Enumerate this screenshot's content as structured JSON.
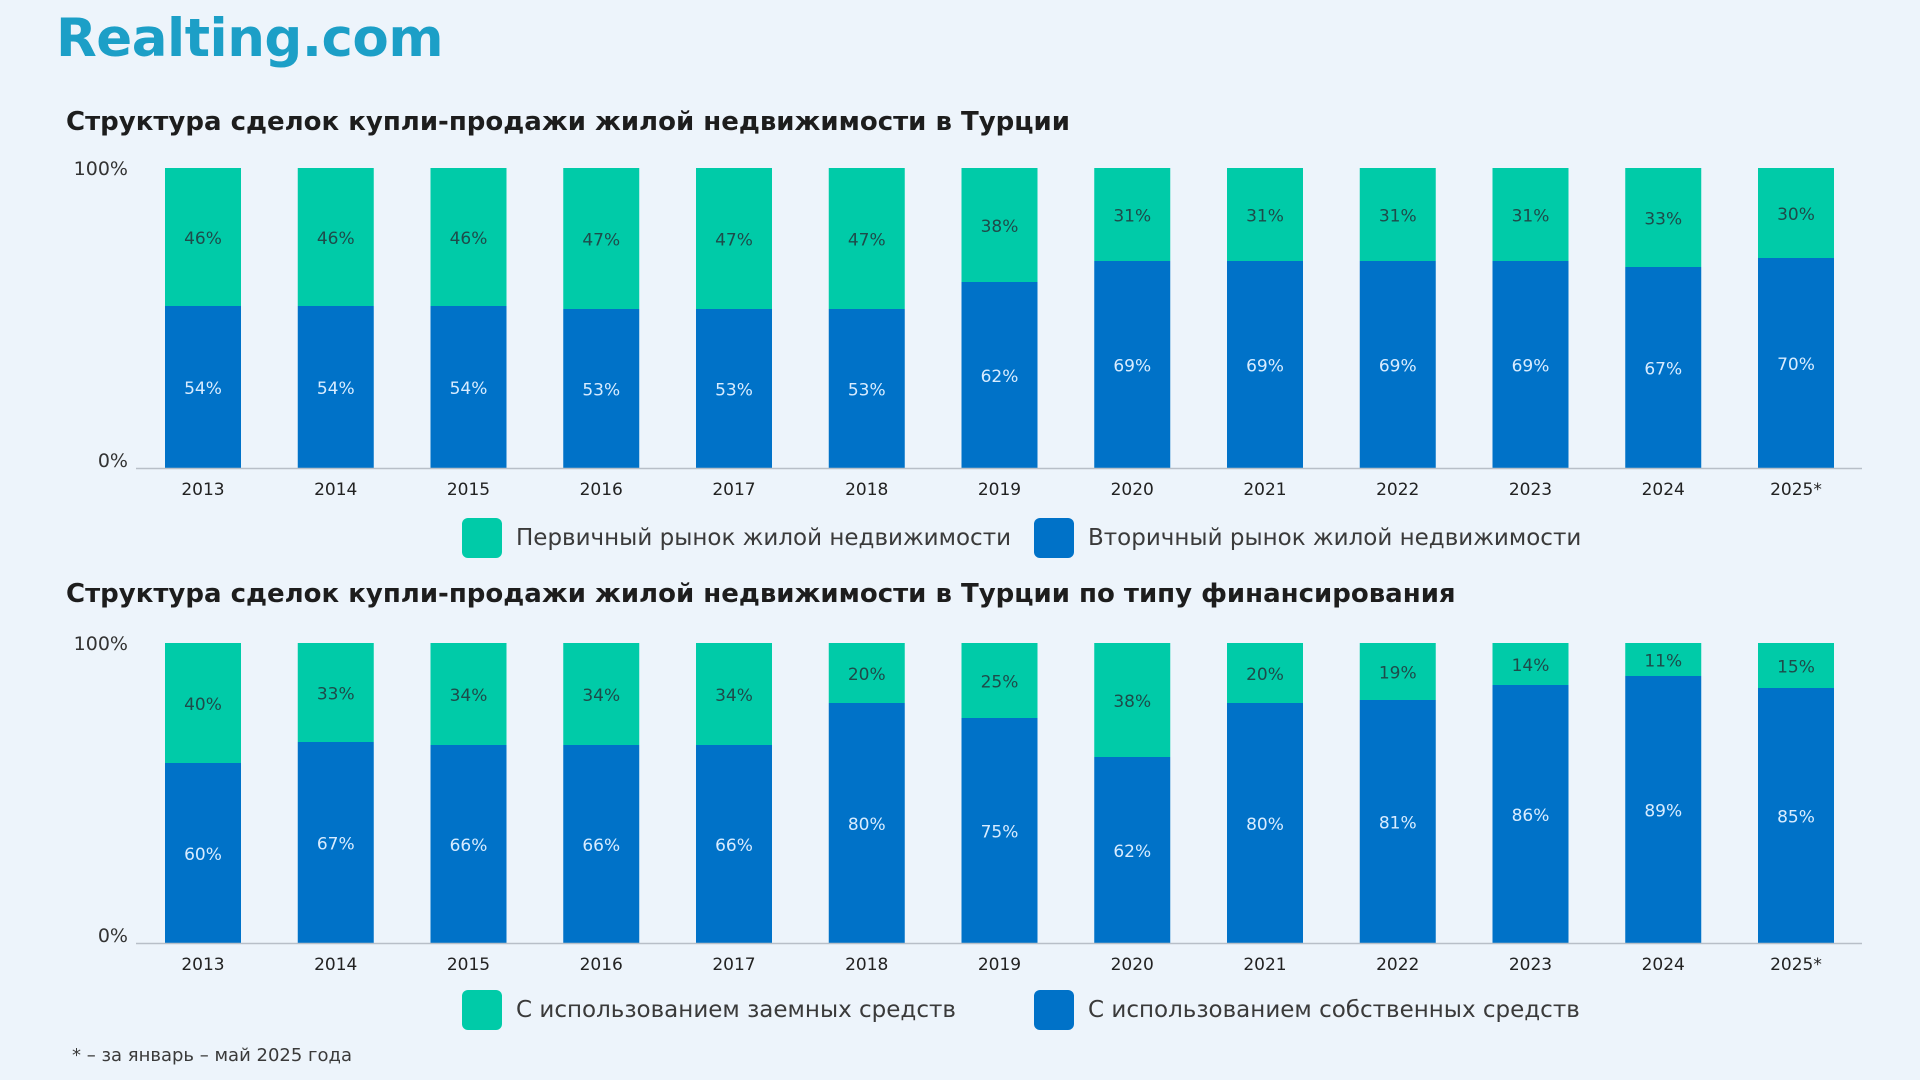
{
  "brand": {
    "logo_text": "Realting.com"
  },
  "colors": {
    "primary_market": "#00cba8",
    "secondary_market": "#0072c8",
    "axis": "#b8bfc8"
  },
  "footnote": "* – за январь – май 2025 года",
  "legend1": {
    "primary": "Первичный рынок жилой недвижимости",
    "secondary": "Вторичный рынок жилой недвижимости"
  },
  "legend2": {
    "primary": "С использованием заемных средств",
    "secondary": "С использованием собственных средств"
  },
  "chart_data": [
    {
      "type": "bar",
      "stacked": true,
      "title": "Структура сделок купли-продажи жилой недвижимости в Турции",
      "categories": [
        "2013",
        "2014",
        "2015",
        "2016",
        "2017",
        "2018",
        "2019",
        "2020",
        "2021",
        "2022",
        "2023",
        "2024",
        "2025*"
      ],
      "y_tick_labels": [
        "0%",
        "100%"
      ],
      "ylim": [
        0,
        100
      ],
      "series": [
        {
          "name": "Вторичный рынок жилой недвижимости",
          "color": "#0072c8",
          "values": [
            54,
            54,
            54,
            53,
            53,
            53,
            62,
            69,
            69,
            69,
            69,
            67,
            70
          ],
          "labels": [
            "54%",
            "54%",
            "54%",
            "53%",
            "53%",
            "53%",
            "62%",
            "69%",
            "69%",
            "69%",
            "69%",
            "67%",
            "70%"
          ]
        },
        {
          "name": "Первичный рынок жилой недвижимости",
          "color": "#00cba8",
          "values": [
            46,
            46,
            46,
            47,
            47,
            47,
            38,
            31,
            31,
            31,
            31,
            33,
            30
          ],
          "labels": [
            "46%",
            "46%",
            "46%",
            "47%",
            "47%",
            "47%",
            "38%",
            "31%",
            "31%",
            "31%",
            "31%",
            "33%",
            "30%"
          ]
        }
      ]
    },
    {
      "type": "bar",
      "stacked": true,
      "title": "Структура сделок купли-продажи жилой недвижимости в Турции по типу финансирования",
      "categories": [
        "2013",
        "2014",
        "2015",
        "2016",
        "2017",
        "2018",
        "2019",
        "2020",
        "2021",
        "2022",
        "2023",
        "2024",
        "2025*"
      ],
      "y_tick_labels": [
        "0%",
        "100%"
      ],
      "ylim": [
        0,
        100
      ],
      "series": [
        {
          "name": "С использованием собственных средств",
          "color": "#0072c8",
          "values": [
            60,
            67,
            66,
            66,
            66,
            80,
            75,
            62,
            80,
            81,
            86,
            89,
            85
          ],
          "labels": [
            "60%",
            "67%",
            "66%",
            "66%",
            "66%",
            "80%",
            "75%",
            "62%",
            "80%",
            "81%",
            "86%",
            "89%",
            "85%"
          ]
        },
        {
          "name": "С использованием заемных средств",
          "color": "#00cba8",
          "values": [
            40,
            33,
            34,
            34,
            34,
            20,
            25,
            38,
            20,
            19,
            14,
            11,
            15
          ],
          "labels": [
            "40%",
            "33%",
            "34%",
            "34%",
            "34%",
            "20%",
            "25%",
            "38%",
            "20%",
            "19%",
            "14%",
            "11%",
            "15%"
          ]
        }
      ]
    }
  ]
}
